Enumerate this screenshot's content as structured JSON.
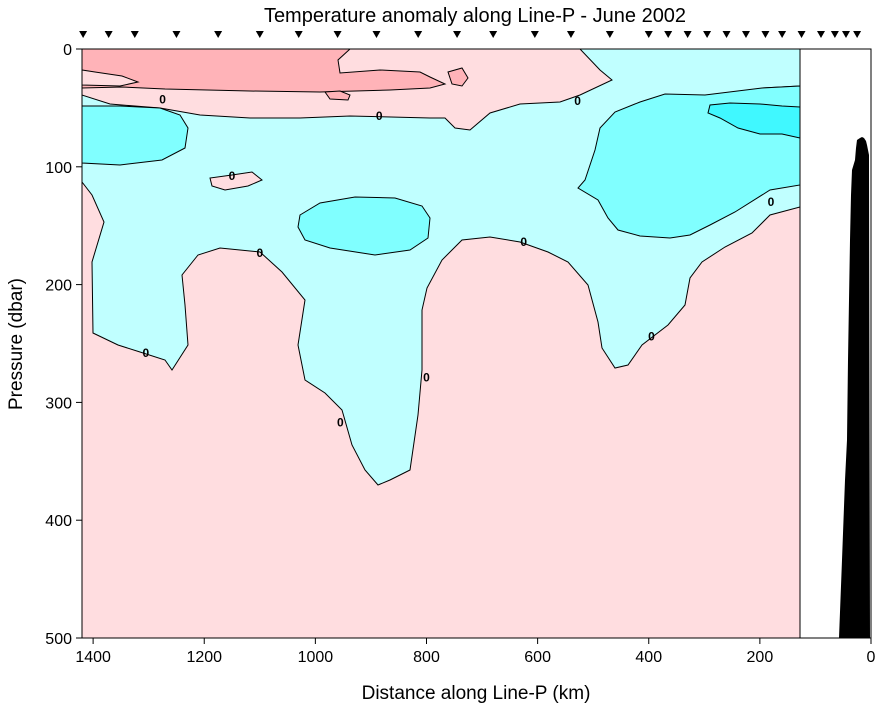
{
  "chart_data": {
    "type": "heatmap",
    "title": "Temperature anomaly along Line-P - June 2002",
    "xlabel": "Distance along Line-P (km)",
    "ylabel": "Pressure (dbar)",
    "xlim": [
      1420,
      0
    ],
    "ylim": [
      0,
      500
    ],
    "x_ticks": [
      1400,
      1200,
      1000,
      800,
      600,
      400,
      200,
      0
    ],
    "y_ticks": [
      0,
      100,
      200,
      300,
      400,
      500
    ],
    "x_tick_labels": [
      "1400",
      "1200",
      "1000",
      "800",
      "600",
      "400",
      "200",
      "0"
    ],
    "y_tick_labels": [
      "0",
      "100",
      "200",
      "300",
      "400",
      "500"
    ],
    "data_right_edge_km": 123,
    "station_markers_km": [
      1418,
      1372,
      1325,
      1250,
      1175,
      1100,
      1030,
      960,
      890,
      815,
      745,
      680,
      605,
      540,
      470,
      400,
      365,
      330,
      295,
      260,
      225,
      190,
      160,
      125,
      90,
      65,
      45,
      25
    ],
    "colors": {
      "warm_strong": "#ffb3b8",
      "warm_weak": "#ffdde0",
      "cool_weak": "#c0ffff",
      "cool_medium": "#80ffff",
      "cool_strong": "#40f8ff",
      "bathymetry": "#000000"
    },
    "contour_labels": [
      {
        "text": "0",
        "x": 1275,
        "y": 43
      },
      {
        "text": "0",
        "x": 885,
        "y": 57
      },
      {
        "text": "0",
        "x": 528,
        "y": 44
      },
      {
        "text": "0",
        "x": 1150,
        "y": 108
      },
      {
        "text": "0",
        "x": 180,
        "y": 130
      },
      {
        "text": "0",
        "x": 1100,
        "y": 173
      },
      {
        "text": "0",
        "x": 625,
        "y": 164
      },
      {
        "text": "0",
        "x": 1305,
        "y": 258
      },
      {
        "text": "0",
        "x": 395,
        "y": 244
      },
      {
        "text": "0",
        "x": 800,
        "y": 279
      },
      {
        "text": "0",
        "x": 955,
        "y": 317
      }
    ]
  }
}
